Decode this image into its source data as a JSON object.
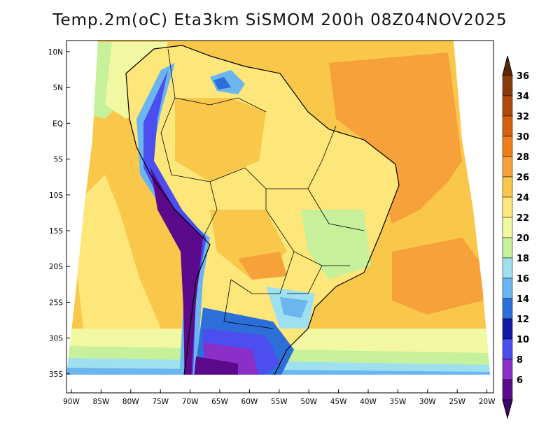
{
  "title": "Temp.2m(oC) Eta3km SiSMOM 200h 08Z04NOV2025",
  "map": {
    "lat_labels": [
      "10N",
      "5N",
      "EQ",
      "5S",
      "10S",
      "15S",
      "20S",
      "25S",
      "30S",
      "35S"
    ],
    "lon_labels": [
      "90W",
      "85W",
      "80W",
      "75W",
      "70W",
      "65W",
      "60W",
      "55W",
      "50W",
      "45W",
      "40W",
      "35W",
      "30W",
      "25W",
      "20W"
    ],
    "land_outline_color": "#000000",
    "ocean_base_color": "#f9c74a"
  },
  "colorbar": {
    "labels": [
      "36",
      "34",
      "32",
      "30",
      "28",
      "26",
      "24",
      "22",
      "20",
      "18",
      "16",
      "14",
      "12",
      "10",
      "8",
      "6"
    ],
    "colors_top_to_bottom": [
      "#8a3a0a",
      "#b04a0c",
      "#d7600f",
      "#f07c1c",
      "#f7a13a",
      "#f9c74a",
      "#fde67a",
      "#f2f7a2",
      "#c6f09a",
      "#9fe0f0",
      "#6cb6f0",
      "#2d6fd8",
      "#1518a6",
      "#4c4ef0",
      "#8a2fc8",
      "#5a0a8a"
    ],
    "top_arrow_color": "#5e2406",
    "bottom_arrow_color": "#3e0668"
  }
}
